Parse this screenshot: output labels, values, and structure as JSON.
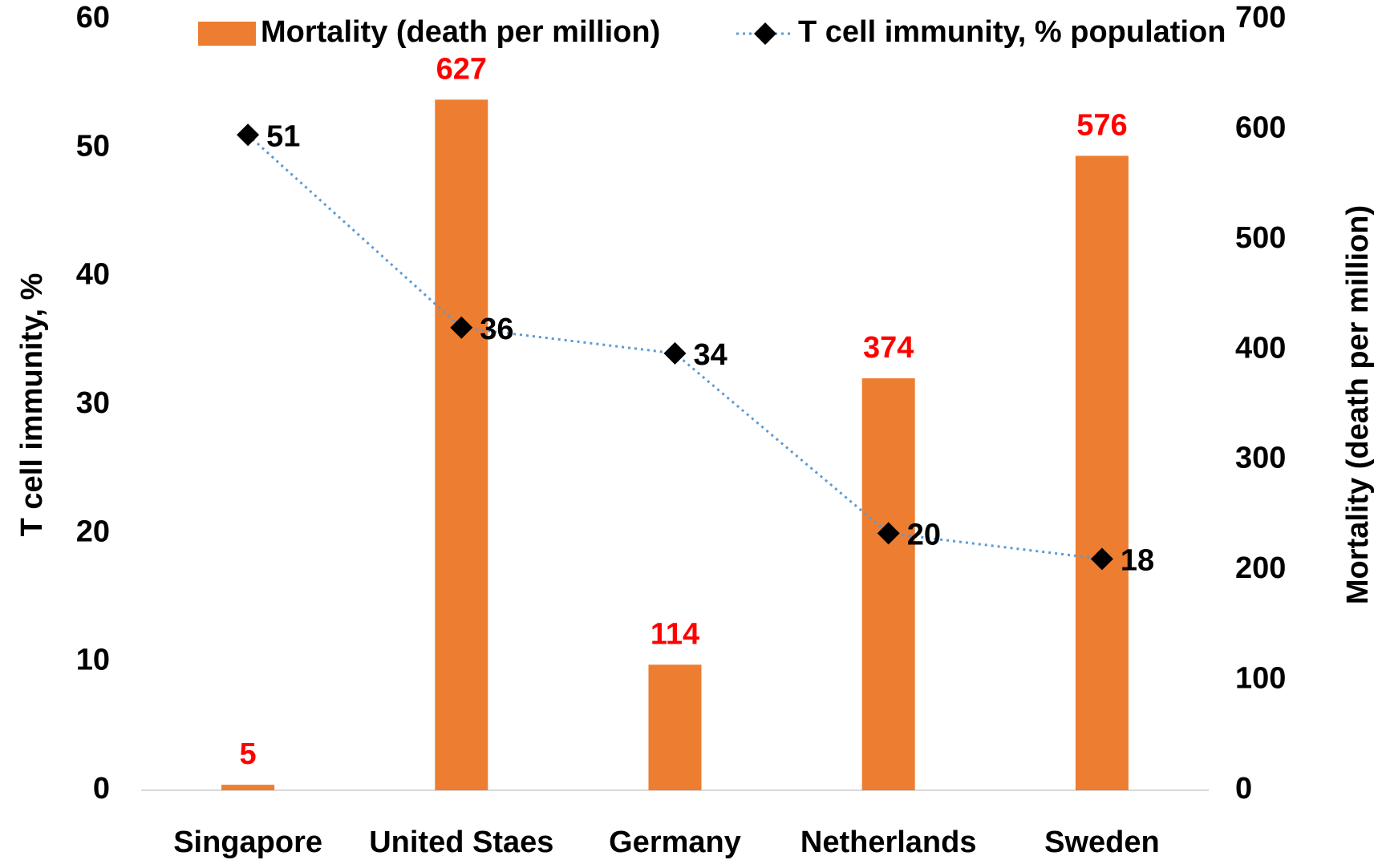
{
  "chart_data": {
    "type": "bar",
    "categories": [
      "Singapore",
      "United Staes",
      "Germany",
      "Netherlands",
      "Sweden"
    ],
    "series": [
      {
        "name": "Mortality (death per million)",
        "type": "bar",
        "axis": "y2",
        "color": "#ed7d31",
        "label_color": "#ff0000",
        "values": [
          5,
          627,
          114,
          374,
          576
        ]
      },
      {
        "name": "T cell immunity, % population",
        "type": "line",
        "axis": "y",
        "color": "#5b9bd5",
        "marker_color": "#000000",
        "label_color": "#000000",
        "values": [
          51,
          36,
          34,
          20,
          18
        ]
      }
    ],
    "y_label": "T cell immunity, %",
    "y2_label": "Mortality (death per million)",
    "ylim": [
      0,
      60
    ],
    "yticks": [
      0,
      10,
      20,
      30,
      40,
      50,
      60
    ],
    "y2lim": [
      0,
      700
    ],
    "y2ticks": [
      0,
      100,
      200,
      300,
      400,
      500,
      600,
      700
    ],
    "grid": false,
    "legend": "top"
  }
}
